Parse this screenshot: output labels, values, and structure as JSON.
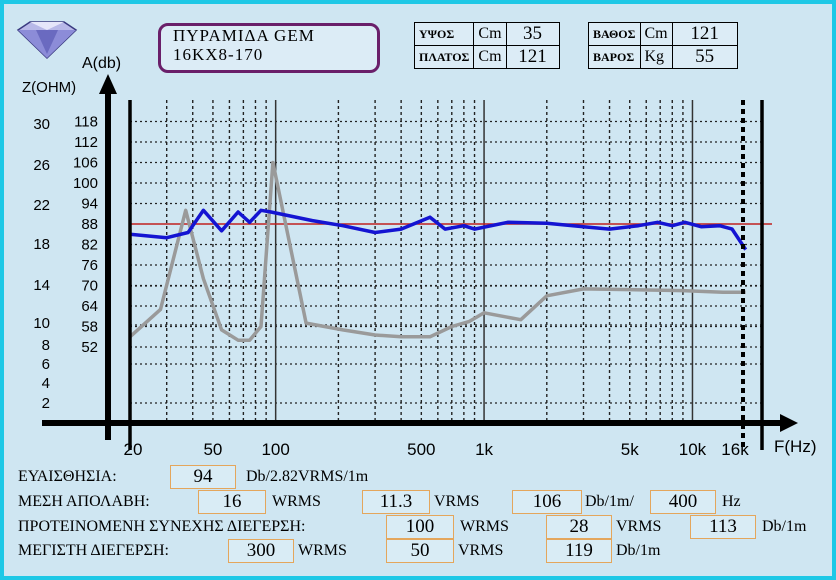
{
  "title": {
    "line1": "ΠΥΡΑΜΙΔΑ GEM",
    "line2": "16KX8-170"
  },
  "specs": {
    "height": {
      "label": "ΥΨΟΣ",
      "unit": "Cm",
      "value": "35"
    },
    "width": {
      "label": "ΠΛΑΤΟΣ",
      "unit": "Cm",
      "value": "121"
    },
    "depth": {
      "label": "ΒΑΘΟΣ",
      "unit": "Cm",
      "value": "121"
    },
    "weight": {
      "label": "ΒΑΡΟΣ",
      "unit": "Kg",
      "value": "55"
    }
  },
  "chart_data": {
    "type": "line",
    "xlabel": "F(Hz)",
    "ylabel_left": "Z(OHM)",
    "ylabel_right": "A(db)",
    "x_scale": "log",
    "x_ticks": [
      "20",
      "50",
      "100",
      "500",
      "1k",
      "5k",
      "10k",
      "16k"
    ],
    "z_ticks": [
      "30",
      "26",
      "22",
      "18",
      "14",
      "10",
      "8",
      "6",
      "4",
      "2"
    ],
    "a_ticks": [
      "118",
      "112",
      "106",
      "100",
      "94",
      "88",
      "82",
      "76",
      "70",
      "64",
      "58",
      "52"
    ],
    "reference_line_db": 88,
    "grid": true,
    "series": [
      {
        "color": "#1414d2",
        "axis": "A(db)",
        "x": [
          20,
          30,
          38,
          45,
          55,
          66,
          75,
          85,
          95,
          150,
          210,
          300,
          400,
          550,
          650,
          800,
          900,
          1300,
          2000,
          3000,
          4000,
          5500,
          6800,
          8000,
          9200,
          11000,
          13500,
          15500,
          18000
        ],
        "y": [
          85,
          84,
          85.5,
          92,
          86,
          91.5,
          88.5,
          92,
          91.5,
          89,
          87.5,
          85.5,
          86.5,
          90,
          86.5,
          87.5,
          86.5,
          88.5,
          88.2,
          87.2,
          86.5,
          87.5,
          88.5,
          87.5,
          88.5,
          87.2,
          87.5,
          86.5,
          80.5
        ]
      },
      {
        "color": "#9a9a9a",
        "axis": "A(db)",
        "x": [
          20,
          28,
          37,
          45,
          55,
          66,
          75,
          85,
          97,
          140,
          210,
          300,
          400,
          550,
          700,
          850,
          1000,
          1500,
          2000,
          3000,
          5000,
          9000,
          14000,
          18000
        ],
        "y": [
          55,
          63,
          92,
          72,
          57,
          54,
          54,
          58,
          106,
          59,
          57,
          55.5,
          55,
          55,
          58,
          59.5,
          62,
          60,
          67,
          69,
          68.8,
          68.5,
          68,
          68
        ]
      }
    ]
  },
  "measurements": {
    "sensitivity": {
      "label": "ΕΥΑΙΣΘΗΣΙΑ:",
      "value": "94",
      "unit": "Db/2.82VRMS/1m"
    },
    "avg_power": {
      "label": "ΜΕΣΗ ΑΠΟΛΑΒΗ:",
      "wrms": "16",
      "wrms_unit": "WRMS",
      "vrms": "11.3",
      "vrms_unit": "VRMS",
      "db": "106",
      "db_unit": "Db/1m/",
      "hz": "400",
      "hz_unit": "Hz"
    },
    "recommended": {
      "label": "ΠΡΟΤΕΙΝΟΜΕΝΗ ΣΥΝΕΧΗΣ ΔΙΕΓΕΡΣΗ:",
      "wrms": "100",
      "wrms_unit": "WRMS",
      "vrms": "28",
      "vrms_unit": "VRMS",
      "db": "113",
      "db_unit": "Db/1m"
    },
    "maximum": {
      "label": "ΜΕΓΙΣΤΗ ΔΙΕΓΕΡΣΗ:",
      "wrms": "300",
      "wrms_unit": "WRMS",
      "vrms": "50",
      "vrms_unit": "VRMS",
      "db": "119",
      "db_unit": "Db/1m"
    }
  }
}
